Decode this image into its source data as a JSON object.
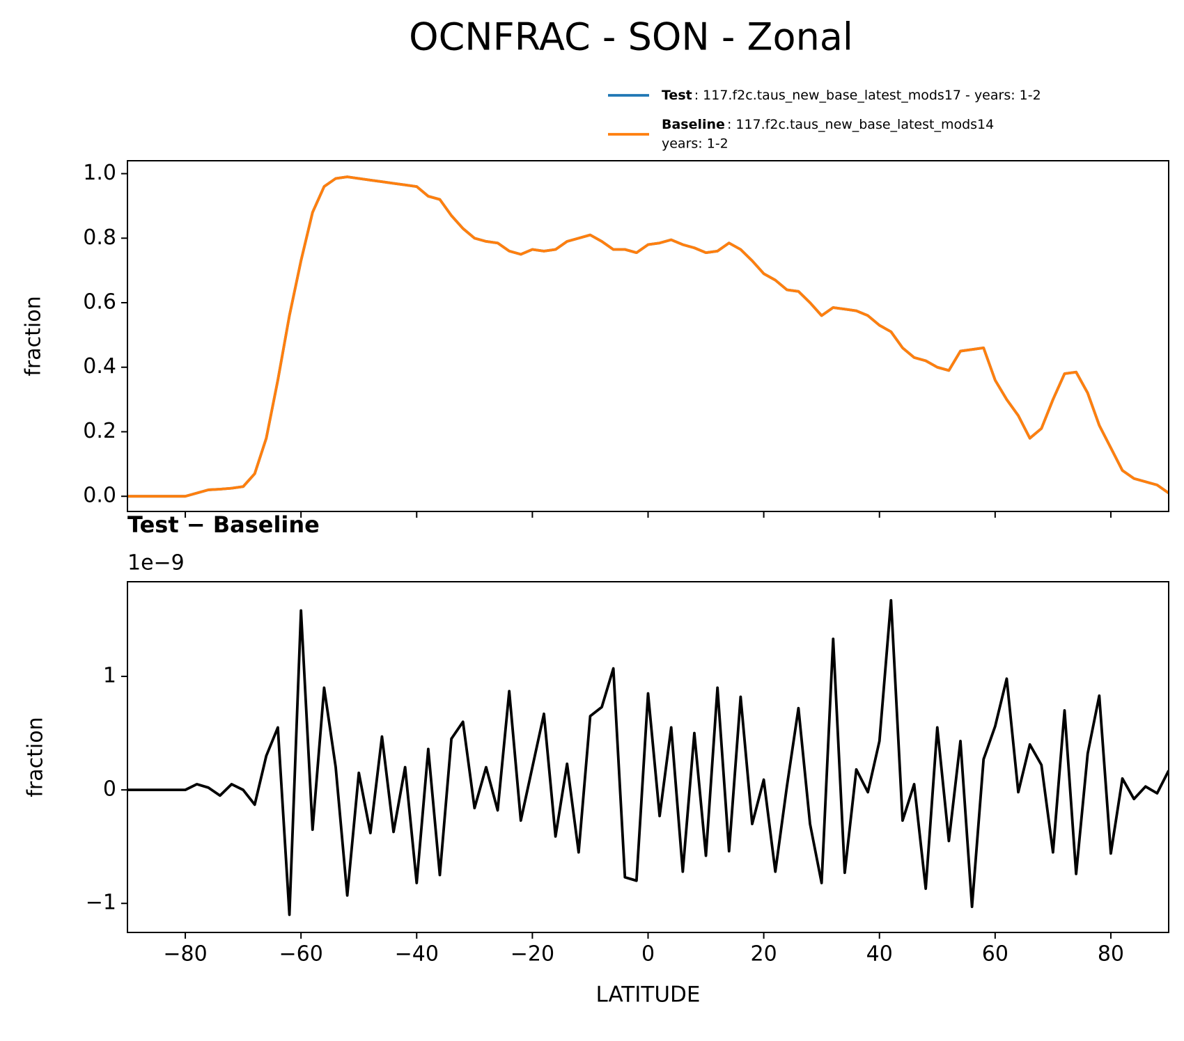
{
  "title": "OCNFRAC - SON - Zonal",
  "chart_data": [
    {
      "type": "line",
      "ylabel": "fraction",
      "legend": "upper right",
      "xlim": [
        -90,
        90
      ],
      "xticks": [
        -80,
        -60,
        -40,
        -20,
        0,
        20,
        40,
        60,
        80
      ],
      "xtick_labels": false,
      "ylim": [
        -0.047,
        1.04
      ],
      "yticks": [
        {
          "value": 0,
          "label": "0.0"
        },
        0.2,
        0.4,
        0.6,
        0.8,
        {
          "value": 1,
          "label": "1.0"
        }
      ],
      "x": [
        -90,
        -88,
        -86,
        -84,
        -82,
        -80,
        -78,
        -76,
        -74,
        -72,
        -70,
        -68,
        -66,
        -64,
        -62,
        -60,
        -58,
        -56,
        -54,
        -52,
        -50,
        -48,
        -46,
        -44,
        -42,
        -40,
        -38,
        -36,
        -34,
        -32,
        -30,
        -28,
        -26,
        -24,
        -22,
        -20,
        -18,
        -16,
        -14,
        -12,
        -10,
        -8,
        -6,
        -4,
        -2,
        0,
        2,
        4,
        6,
        8,
        10,
        12,
        14,
        16,
        18,
        20,
        22,
        24,
        26,
        28,
        30,
        32,
        34,
        36,
        38,
        40,
        42,
        44,
        46,
        48,
        50,
        52,
        54,
        56,
        58,
        60,
        62,
        64,
        66,
        68,
        70,
        72,
        74,
        76,
        78,
        80,
        82,
        84,
        86,
        88,
        90
      ],
      "series": [
        {
          "name": "Test",
          "description": [
            ": 117.f2c.taus_new_base_latest_mods17 - years: 1-2"
          ],
          "color": "#1f77b4",
          "values": [
            0,
            0,
            0,
            0,
            0,
            0,
            0.01,
            0.02,
            0.022,
            0.025,
            0.03,
            0.07,
            0.18,
            0.36,
            0.56,
            0.73,
            0.88,
            0.96,
            0.985,
            0.99,
            0.985,
            0.98,
            0.975,
            0.97,
            0.965,
            0.96,
            0.93,
            0.92,
            0.87,
            0.83,
            0.8,
            0.79,
            0.785,
            0.76,
            0.75,
            0.765,
            0.76,
            0.765,
            0.79,
            0.8,
            0.81,
            0.79,
            0.765,
            0.765,
            0.755,
            0.78,
            0.785,
            0.795,
            0.78,
            0.77,
            0.755,
            0.76,
            0.785,
            0.765,
            0.73,
            0.69,
            0.67,
            0.64,
            0.635,
            0.6,
            0.56,
            0.585,
            0.58,
            0.575,
            0.56,
            0.53,
            0.51,
            0.46,
            0.43,
            0.42,
            0.4,
            0.39,
            0.45,
            0.455,
            0.46,
            0.36,
            0.3,
            0.25,
            0.18,
            0.21,
            0.3,
            0.38,
            0.385,
            0.32,
            0.22,
            0.15,
            0.08,
            0.055,
            0.045,
            0.035,
            0.01
          ]
        },
        {
          "name": "Baseline",
          "description": [
            ": 117.f2c.taus_new_base_latest_mods14",
            "years: 1-2"
          ],
          "color": "#ff7f0e",
          "values": [
            0,
            0,
            0,
            0,
            0,
            0,
            0.01,
            0.02,
            0.022,
            0.025,
            0.03,
            0.07,
            0.18,
            0.36,
            0.56,
            0.73,
            0.88,
            0.96,
            0.985,
            0.99,
            0.985,
            0.98,
            0.975,
            0.97,
            0.965,
            0.96,
            0.93,
            0.92,
            0.87,
            0.83,
            0.8,
            0.79,
            0.785,
            0.76,
            0.75,
            0.765,
            0.76,
            0.765,
            0.79,
            0.8,
            0.81,
            0.79,
            0.765,
            0.765,
            0.755,
            0.78,
            0.785,
            0.795,
            0.78,
            0.77,
            0.755,
            0.76,
            0.785,
            0.765,
            0.73,
            0.69,
            0.67,
            0.64,
            0.635,
            0.6,
            0.56,
            0.585,
            0.58,
            0.575,
            0.56,
            0.53,
            0.51,
            0.46,
            0.43,
            0.42,
            0.4,
            0.39,
            0.45,
            0.455,
            0.46,
            0.36,
            0.3,
            0.25,
            0.18,
            0.21,
            0.3,
            0.38,
            0.385,
            0.32,
            0.22,
            0.15,
            0.08,
            0.055,
            0.045,
            0.035,
            0.01
          ]
        }
      ]
    },
    {
      "type": "line",
      "title": "Test − Baseline",
      "offset_text": "1e−9",
      "xlabel": "LATITUDE",
      "ylabel": "fraction",
      "xlim": [
        -90,
        90
      ],
      "xticks": [
        {
          "value": -80,
          "label": "−80"
        },
        {
          "value": -60,
          "label": "−60"
        },
        {
          "value": -40,
          "label": "−40"
        },
        {
          "value": -20,
          "label": "−20"
        },
        0,
        20,
        40,
        60,
        80
      ],
      "xtick_labels": true,
      "ylim": [
        -1.256,
        1.834
      ],
      "yticks": [
        {
          "value": -1,
          "label": "−1"
        },
        0,
        1
      ],
      "x": [
        -90,
        -88,
        -86,
        -84,
        -82,
        -80,
        -78,
        -76,
        -74,
        -72,
        -70,
        -68,
        -66,
        -64,
        -62,
        -60,
        -58,
        -56,
        -54,
        -52,
        -50,
        -48,
        -46,
        -44,
        -42,
        -40,
        -38,
        -36,
        -34,
        -32,
        -30,
        -28,
        -26,
        -24,
        -22,
        -20,
        -18,
        -16,
        -14,
        -12,
        -10,
        -8,
        -6,
        -4,
        -2,
        0,
        2,
        4,
        6,
        8,
        10,
        12,
        14,
        16,
        18,
        20,
        22,
        24,
        26,
        28,
        30,
        32,
        34,
        36,
        38,
        40,
        42,
        44,
        46,
        48,
        50,
        52,
        54,
        56,
        58,
        60,
        62,
        64,
        66,
        68,
        70,
        72,
        74,
        76,
        78,
        80,
        82,
        84,
        86,
        88,
        90
      ],
      "series": [
        {
          "name": "Test − Baseline",
          "color": "#000000",
          "values": [
            0,
            0,
            0,
            0,
            0,
            0,
            0.05,
            0.02,
            -0.05,
            0.05,
            0,
            -0.13,
            0.3,
            0.55,
            -1.1,
            1.58,
            -0.35,
            0.9,
            0.2,
            -0.93,
            0.15,
            -0.38,
            0.47,
            -0.37,
            0.2,
            -0.82,
            0.36,
            -0.75,
            0.45,
            0.6,
            -0.16,
            0.2,
            -0.18,
            0.87,
            -0.27,
            0.2,
            0.67,
            -0.41,
            0.23,
            -0.55,
            0.65,
            0.73,
            1.07,
            -0.77,
            -0.8,
            0.85,
            -0.23,
            0.55,
            -0.72,
            0.5,
            -0.58,
            0.9,
            -0.54,
            0.82,
            -0.3,
            0.09,
            -0.72,
            0.03,
            0.72,
            -0.3,
            -0.82,
            1.33,
            -0.73,
            0.18,
            -0.02,
            0.43,
            1.67,
            -0.27,
            0.05,
            -0.87,
            0.55,
            -0.45,
            0.43,
            -1.03,
            0.27,
            0.56,
            0.98,
            -0.02,
            0.4,
            0.22,
            -0.55,
            0.7,
            -0.74,
            0.32,
            0.83,
            -0.56,
            0.1,
            -0.08,
            0.03,
            -0.03,
            0.17
          ]
        }
      ]
    }
  ]
}
